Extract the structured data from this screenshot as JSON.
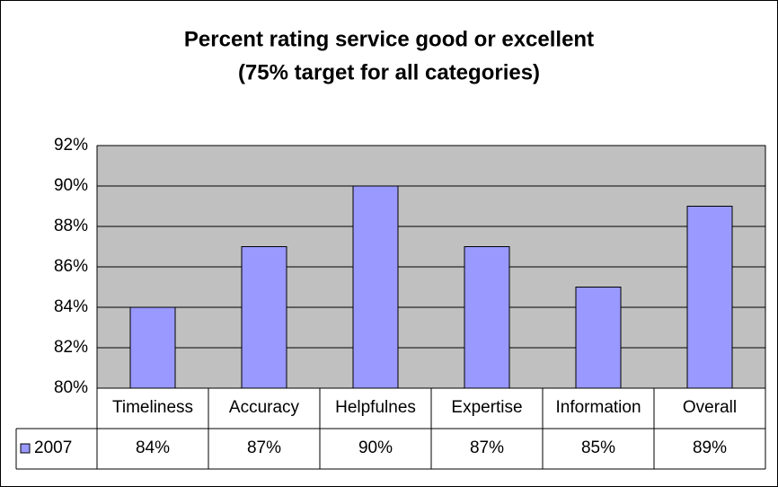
{
  "chart_data": {
    "type": "bar",
    "title": "Percent rating service good or excellent",
    "subtitle": "(75% target for all categories)",
    "categories": [
      "Timeliness",
      "Accuracy",
      "Helpfulnes",
      "Expertise",
      "Information",
      "Overall"
    ],
    "series": [
      {
        "name": "2007",
        "color": "#9999ff",
        "values": [
          84,
          87,
          90,
          87,
          85,
          89
        ],
        "value_labels": [
          "84%",
          "87%",
          "90%",
          "87%",
          "85%",
          "89%"
        ]
      }
    ],
    "ylim": [
      80,
      92
    ],
    "yticks": [
      {
        "value": 80,
        "label": "80%"
      },
      {
        "value": 82,
        "label": "82%"
      },
      {
        "value": 84,
        "label": "84%"
      },
      {
        "value": 86,
        "label": "86%"
      },
      {
        "value": 88,
        "label": "88%"
      },
      {
        "value": 90,
        "label": "90%"
      },
      {
        "value": 92,
        "label": "92%"
      }
    ],
    "grid": true,
    "plot_background": "#c0c0c0"
  }
}
